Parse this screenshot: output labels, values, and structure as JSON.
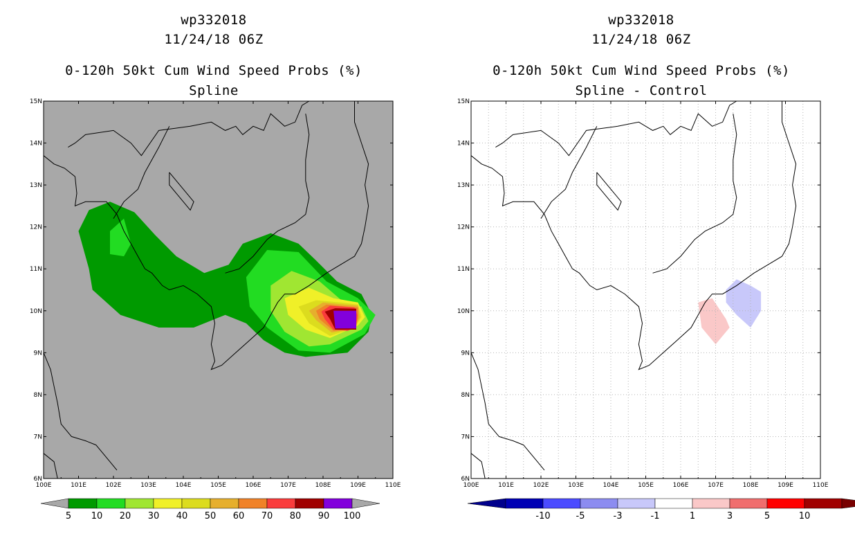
{
  "chart_data": [
    {
      "type": "heatmap",
      "title_lines": [
        "wp332018",
        "11/24/18 06Z",
        "0-120h 50kt Cum Wind Speed Probs (%)",
        "Spline"
      ],
      "xlim": [
        100,
        110
      ],
      "ylim": [
        6,
        15
      ],
      "x_tick_labels": [
        "100E",
        "101E",
        "102E",
        "103E",
        "104E",
        "105E",
        "106E",
        "107E",
        "108E",
        "109E",
        "110E"
      ],
      "y_tick_labels": [
        "6N",
        "7N",
        "8N",
        "9N",
        "10N",
        "11N",
        "12N",
        "13N",
        "14N",
        "15N"
      ],
      "colorbar": {
        "labels": [
          "5",
          "10",
          "20",
          "30",
          "40",
          "50",
          "60",
          "70",
          "80",
          "90",
          "100"
        ],
        "colors": [
          "#009a00",
          "#22dc22",
          "#a0e632",
          "#f0f028",
          "#dcdc1e",
          "#e6af2d",
          "#f08228",
          "#fa3c3c",
          "#a00000",
          "#8200dc"
        ],
        "end_color": "#a8a8a8"
      },
      "background_color": "#a8a8a8",
      "contours": [
        {
          "level": 5,
          "color": "#009a00",
          "points": [
            [
              101,
              11.9
            ],
            [
              101.3,
              12.4
            ],
            [
              101.9,
              12.6
            ],
            [
              102.6,
              12.35
            ],
            [
              103.2,
              11.8
            ],
            [
              103.8,
              11.3
            ],
            [
              104.6,
              10.9
            ],
            [
              105.3,
              11.1
            ],
            [
              105.7,
              11.6
            ],
            [
              106.5,
              11.85
            ],
            [
              107.3,
              11.6
            ],
            [
              107.8,
              11.2
            ],
            [
              108.4,
              10.7
            ],
            [
              109.1,
              10.4
            ],
            [
              109.4,
              9.9
            ],
            [
              109.3,
              9.5
            ],
            [
              108.7,
              9.0
            ],
            [
              107.5,
              8.9
            ],
            [
              106.9,
              9.0
            ],
            [
              106.3,
              9.3
            ],
            [
              105.8,
              9.7
            ],
            [
              105.2,
              9.9
            ],
            [
              104.3,
              9.6
            ],
            [
              103.3,
              9.6
            ],
            [
              102.2,
              9.9
            ],
            [
              101.4,
              10.5
            ],
            [
              101.3,
              11.0
            ]
          ]
        },
        {
          "level": 10,
          "color": "#22dc22",
          "points": [
            [
              101.9,
              11.9
            ],
            [
              102.3,
              12.2
            ],
            [
              102.5,
              11.6
            ],
            [
              102.3,
              11.3
            ],
            [
              101.9,
              11.35
            ]
          ]
        },
        {
          "level": 10,
          "color": "#22dc22",
          "points": [
            [
              105.8,
              10.8
            ],
            [
              106.4,
              11.45
            ],
            [
              107.3,
              11.4
            ],
            [
              108.1,
              10.7
            ],
            [
              109,
              10.3
            ],
            [
              109.5,
              9.9
            ],
            [
              109.2,
              9.45
            ],
            [
              108.2,
              9.0
            ],
            [
              107.3,
              9.05
            ],
            [
              106.4,
              9.6
            ],
            [
              105.9,
              10.1
            ]
          ]
        },
        {
          "level": 20,
          "color": "#a0e632",
          "points": [
            [
              106.5,
              10.6
            ],
            [
              107.1,
              10.95
            ],
            [
              107.9,
              10.7
            ],
            [
              108.6,
              10.2
            ],
            [
              109.1,
              10.1
            ],
            [
              109.3,
              9.75
            ],
            [
              109.1,
              9.55
            ],
            [
              108.2,
              9.2
            ],
            [
              107.6,
              9.15
            ],
            [
              106.9,
              9.5
            ],
            [
              106.5,
              10
            ]
          ]
        },
        {
          "level": 30,
          "color": "#f0f028",
          "points": [
            [
              106.9,
              10.3
            ],
            [
              107.6,
              10.55
            ],
            [
              108.3,
              10.3
            ],
            [
              109,
              10.2
            ],
            [
              109.2,
              9.85
            ],
            [
              109,
              9.65
            ],
            [
              108.2,
              9.35
            ],
            [
              107.5,
              9.55
            ],
            [
              107,
              9.9
            ]
          ]
        },
        {
          "level": 40,
          "color": "#dcdc1e",
          "points": [
            [
              107.3,
              10.1
            ],
            [
              107.8,
              10.25
            ],
            [
              108.5,
              10.2
            ],
            [
              109,
              10.15
            ],
            [
              109.1,
              9.85
            ],
            [
              108.9,
              9.6
            ],
            [
              108.2,
              9.4
            ],
            [
              107.6,
              9.7
            ]
          ]
        },
        {
          "level": 50,
          "color": "#e6af2d",
          "points": [
            [
              107.6,
              10
            ],
            [
              108,
              10.2
            ],
            [
              108.6,
              10.15
            ],
            [
              109,
              10.12
            ],
            [
              109.05,
              9.85
            ],
            [
              108.9,
              9.58
            ],
            [
              108.25,
              9.48
            ],
            [
              107.8,
              9.78
            ]
          ]
        },
        {
          "level": 60,
          "color": "#f08228",
          "points": [
            [
              107.8,
              10
            ],
            [
              108.1,
              10.15
            ],
            [
              108.7,
              10.1
            ],
            [
              109,
              10.08
            ],
            [
              109,
              9.8
            ],
            [
              108.8,
              9.56
            ],
            [
              108.3,
              9.52
            ],
            [
              107.9,
              9.8
            ]
          ]
        },
        {
          "level": 70,
          "color": "#fa3c3c",
          "points": [
            [
              107.95,
              9.98
            ],
            [
              108.2,
              10.12
            ],
            [
              108.9,
              10.08
            ],
            [
              108.98,
              9.9
            ],
            [
              108.95,
              9.6
            ],
            [
              108.7,
              9.52
            ],
            [
              108.3,
              9.55
            ],
            [
              108.05,
              9.8
            ]
          ]
        },
        {
          "level": 80,
          "color": "#a00000",
          "points": [
            [
              108.05,
              9.98
            ],
            [
              108.35,
              10.06
            ],
            [
              108.95,
              10.05
            ],
            [
              108.95,
              9.55
            ],
            [
              108.35,
              9.55
            ],
            [
              108.2,
              9.8
            ]
          ]
        },
        {
          "level": 90,
          "color": "#8200dc",
          "points": [
            [
              108.3,
              10.0
            ],
            [
              108.95,
              10.0
            ],
            [
              108.95,
              9.58
            ],
            [
              108.35,
              9.58
            ]
          ]
        }
      ]
    },
    {
      "type": "heatmap",
      "title_lines": [
        "wp332018",
        "11/24/18 06Z",
        "0-120h 50kt Cum Wind Speed Probs (%)",
        "Spline - Control"
      ],
      "xlim": [
        100,
        110
      ],
      "ylim": [
        6,
        15
      ],
      "x_tick_labels": [
        "100E",
        "101E",
        "102E",
        "103E",
        "104E",
        "105E",
        "106E",
        "107E",
        "108E",
        "109E",
        "110E"
      ],
      "y_tick_labels": [
        "6N",
        "7N",
        "8N",
        "9N",
        "10N",
        "11N",
        "12N",
        "13N",
        "14N",
        "15N"
      ],
      "colorbar": {
        "labels": [
          "-10",
          "-5",
          "-3",
          "-1",
          "1",
          "3",
          "5",
          "10"
        ],
        "colors": [
          "#0000b4",
          "#4b4bff",
          "#8c8cf0",
          "#c8c8fa",
          "#ffffff",
          "#fac8c8",
          "#f06e6e",
          "#ff0000",
          "#a00000"
        ],
        "end_left": "#00008c",
        "end_right": "#780000"
      },
      "background_color": "#ffffff",
      "contours": [
        {
          "level": 1,
          "color": "#fac8c8",
          "points": [
            [
              106.5,
              10.2
            ],
            [
              106.9,
              10.3
            ],
            [
              107.3,
              9.8
            ],
            [
              107.4,
              9.6
            ],
            [
              107,
              9.2
            ],
            [
              106.6,
              9.6
            ]
          ]
        },
        {
          "level": -1,
          "color": "#c8c8fa",
          "points": [
            [
              107.3,
              10.5
            ],
            [
              107.6,
              10.75
            ],
            [
              108,
              10.6
            ],
            [
              108.3,
              10.45
            ],
            [
              108.3,
              10.0
            ],
            [
              108,
              9.6
            ],
            [
              107.6,
              9.9
            ],
            [
              107.3,
              10.2
            ]
          ]
        }
      ]
    }
  ]
}
